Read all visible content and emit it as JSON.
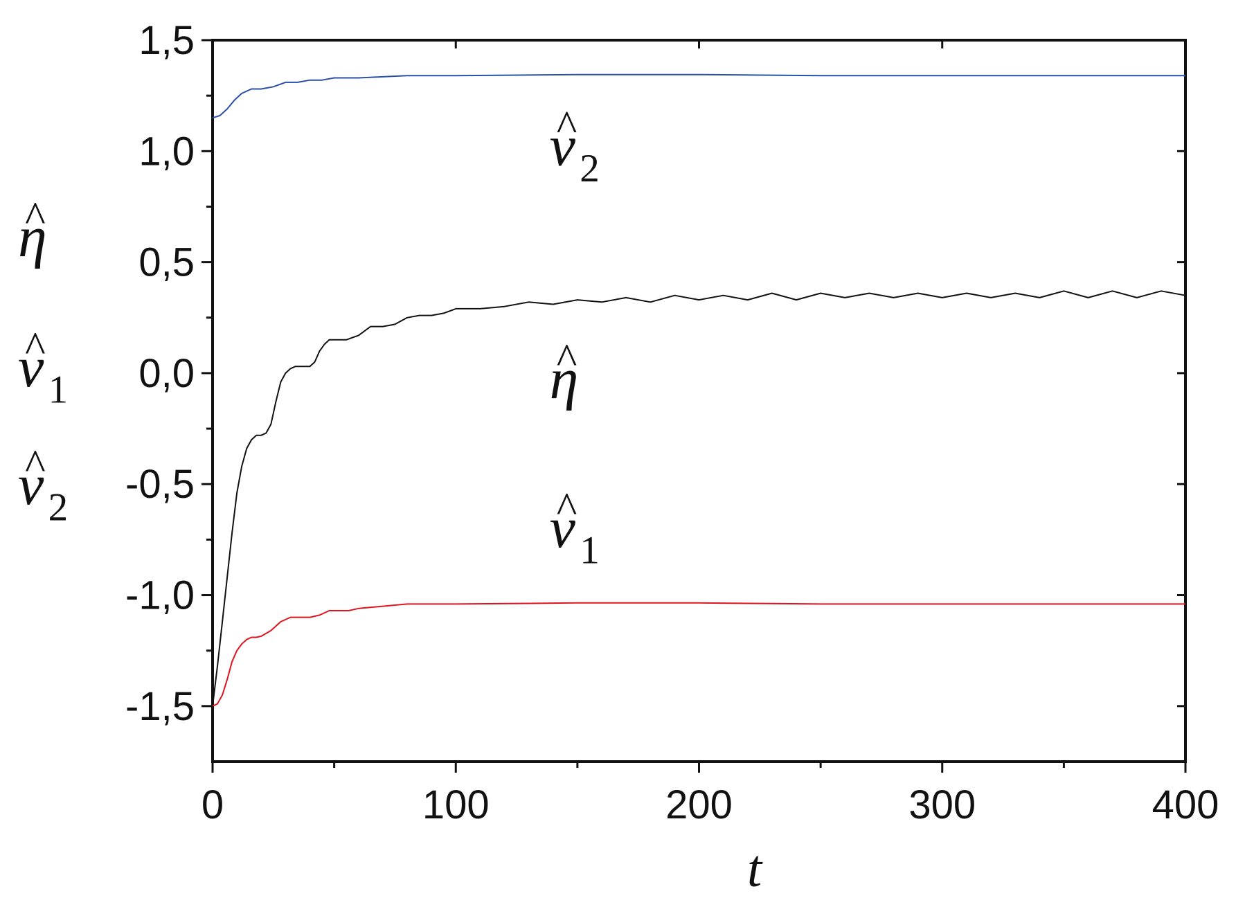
{
  "chart_data": {
    "type": "line",
    "title": "",
    "xlabel": "t",
    "ylabel": [
      "η̂",
      "v̂1",
      "v̂2"
    ],
    "xlim": [
      0,
      400
    ],
    "ylim": [
      -1.75,
      1.5
    ],
    "x_ticks": [
      0,
      100,
      200,
      300,
      400
    ],
    "x_tick_labels": [
      "0",
      "100",
      "200",
      "300",
      "400"
    ],
    "y_ticks": [
      1.5,
      1.0,
      0.5,
      0.0,
      -0.5,
      -1.0,
      -1.5
    ],
    "y_tick_labels": [
      "1,5",
      "1,0",
      "0,5",
      "0,0",
      "-0,5",
      "-1,0",
      "-1,5"
    ],
    "grid": false,
    "legend": "none",
    "series": [
      {
        "id": "v2",
        "label_base": "v",
        "label_sub": "2",
        "color": "#2a4fa8",
        "x": [
          0,
          3,
          6,
          9,
          12,
          16,
          20,
          25,
          30,
          35,
          40,
          45,
          50,
          60,
          70,
          80,
          100,
          150,
          200,
          250,
          300,
          350,
          400
        ],
        "y": [
          1.15,
          1.16,
          1.19,
          1.23,
          1.26,
          1.28,
          1.28,
          1.29,
          1.31,
          1.31,
          1.32,
          1.32,
          1.33,
          1.33,
          1.335,
          1.34,
          1.34,
          1.345,
          1.345,
          1.34,
          1.34,
          1.34,
          1.34
        ]
      },
      {
        "id": "eta",
        "label_base": "η",
        "label_sub": "",
        "color": "#111111",
        "x": [
          0,
          2,
          4,
          6,
          8,
          10,
          12,
          14,
          16,
          18,
          20,
          22,
          24,
          26,
          28,
          30,
          32,
          34,
          36,
          38,
          40,
          42,
          44,
          46,
          48,
          50,
          55,
          60,
          65,
          70,
          75,
          80,
          85,
          90,
          95,
          100,
          110,
          120,
          130,
          140,
          150,
          160,
          170,
          180,
          190,
          200,
          210,
          220,
          230,
          240,
          250,
          260,
          270,
          280,
          290,
          300,
          310,
          320,
          330,
          340,
          350,
          360,
          370,
          380,
          390,
          400
        ],
        "y": [
          -1.5,
          -1.32,
          -1.12,
          -0.92,
          -0.72,
          -0.54,
          -0.42,
          -0.34,
          -0.3,
          -0.28,
          -0.28,
          -0.27,
          -0.23,
          -0.13,
          -0.04,
          0.0,
          0.02,
          0.03,
          0.03,
          0.03,
          0.03,
          0.05,
          0.1,
          0.13,
          0.15,
          0.15,
          0.15,
          0.17,
          0.21,
          0.21,
          0.22,
          0.25,
          0.26,
          0.26,
          0.27,
          0.29,
          0.29,
          0.3,
          0.32,
          0.31,
          0.33,
          0.32,
          0.34,
          0.32,
          0.35,
          0.33,
          0.35,
          0.33,
          0.36,
          0.33,
          0.36,
          0.34,
          0.36,
          0.34,
          0.36,
          0.34,
          0.36,
          0.34,
          0.36,
          0.34,
          0.37,
          0.34,
          0.37,
          0.34,
          0.37,
          0.35
        ]
      },
      {
        "id": "v1",
        "label_base": "v",
        "label_sub": "1",
        "color": "#e0141e",
        "x": [
          0,
          2,
          4,
          6,
          8,
          10,
          12,
          14,
          16,
          18,
          20,
          24,
          28,
          32,
          36,
          40,
          44,
          48,
          52,
          56,
          60,
          70,
          80,
          100,
          150,
          200,
          250,
          300,
          350,
          400
        ],
        "y": [
          -1.5,
          -1.49,
          -1.45,
          -1.38,
          -1.3,
          -1.25,
          -1.22,
          -1.2,
          -1.19,
          -1.19,
          -1.185,
          -1.16,
          -1.12,
          -1.1,
          -1.1,
          -1.1,
          -1.09,
          -1.07,
          -1.07,
          -1.07,
          -1.06,
          -1.05,
          -1.04,
          -1.04,
          -1.035,
          -1.035,
          -1.04,
          -1.04,
          -1.04,
          -1.04
        ]
      }
    ],
    "annotations": [
      {
        "base": "v",
        "sub": "2",
        "x": 130,
        "y": 1.0
      },
      {
        "base": "η",
        "sub": "",
        "x": 130,
        "y": -0.05
      },
      {
        "base": "v",
        "sub": "1",
        "x": 130,
        "y": -0.72
      }
    ]
  }
}
